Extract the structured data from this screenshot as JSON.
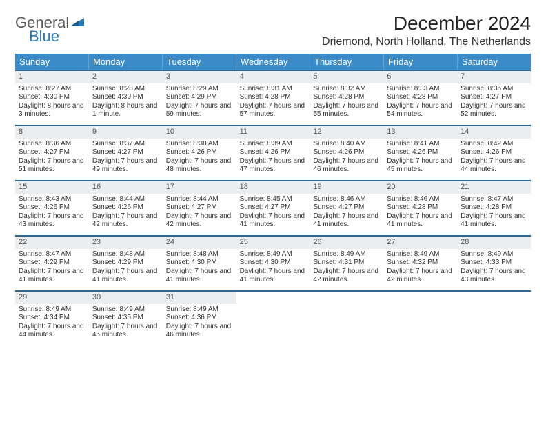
{
  "brand": {
    "word1": "General",
    "word2": "Blue"
  },
  "title": "December 2024",
  "location": "Driemond, North Holland, The Netherlands",
  "colors": {
    "header_bg": "#3b8bc9",
    "week_divider": "#2a6a9a",
    "daynum_bg": "#ecedee",
    "logo_gray": "#5a5a5a",
    "logo_blue": "#2a7ab8"
  },
  "weekdays": [
    "Sunday",
    "Monday",
    "Tuesday",
    "Wednesday",
    "Thursday",
    "Friday",
    "Saturday"
  ],
  "weeks": [
    [
      {
        "n": "1",
        "sr": "8:27 AM",
        "ss": "4:30 PM",
        "dl": "8 hours and 3 minutes."
      },
      {
        "n": "2",
        "sr": "8:28 AM",
        "ss": "4:30 PM",
        "dl": "8 hours and 1 minute."
      },
      {
        "n": "3",
        "sr": "8:29 AM",
        "ss": "4:29 PM",
        "dl": "7 hours and 59 minutes."
      },
      {
        "n": "4",
        "sr": "8:31 AM",
        "ss": "4:28 PM",
        "dl": "7 hours and 57 minutes."
      },
      {
        "n": "5",
        "sr": "8:32 AM",
        "ss": "4:28 PM",
        "dl": "7 hours and 55 minutes."
      },
      {
        "n": "6",
        "sr": "8:33 AM",
        "ss": "4:28 PM",
        "dl": "7 hours and 54 minutes."
      },
      {
        "n": "7",
        "sr": "8:35 AM",
        "ss": "4:27 PM",
        "dl": "7 hours and 52 minutes."
      }
    ],
    [
      {
        "n": "8",
        "sr": "8:36 AM",
        "ss": "4:27 PM",
        "dl": "7 hours and 51 minutes."
      },
      {
        "n": "9",
        "sr": "8:37 AM",
        "ss": "4:27 PM",
        "dl": "7 hours and 49 minutes."
      },
      {
        "n": "10",
        "sr": "8:38 AM",
        "ss": "4:26 PM",
        "dl": "7 hours and 48 minutes."
      },
      {
        "n": "11",
        "sr": "8:39 AM",
        "ss": "4:26 PM",
        "dl": "7 hours and 47 minutes."
      },
      {
        "n": "12",
        "sr": "8:40 AM",
        "ss": "4:26 PM",
        "dl": "7 hours and 46 minutes."
      },
      {
        "n": "13",
        "sr": "8:41 AM",
        "ss": "4:26 PM",
        "dl": "7 hours and 45 minutes."
      },
      {
        "n": "14",
        "sr": "8:42 AM",
        "ss": "4:26 PM",
        "dl": "7 hours and 44 minutes."
      }
    ],
    [
      {
        "n": "15",
        "sr": "8:43 AM",
        "ss": "4:26 PM",
        "dl": "7 hours and 43 minutes."
      },
      {
        "n": "16",
        "sr": "8:44 AM",
        "ss": "4:26 PM",
        "dl": "7 hours and 42 minutes."
      },
      {
        "n": "17",
        "sr": "8:44 AM",
        "ss": "4:27 PM",
        "dl": "7 hours and 42 minutes."
      },
      {
        "n": "18",
        "sr": "8:45 AM",
        "ss": "4:27 PM",
        "dl": "7 hours and 41 minutes."
      },
      {
        "n": "19",
        "sr": "8:46 AM",
        "ss": "4:27 PM",
        "dl": "7 hours and 41 minutes."
      },
      {
        "n": "20",
        "sr": "8:46 AM",
        "ss": "4:28 PM",
        "dl": "7 hours and 41 minutes."
      },
      {
        "n": "21",
        "sr": "8:47 AM",
        "ss": "4:28 PM",
        "dl": "7 hours and 41 minutes."
      }
    ],
    [
      {
        "n": "22",
        "sr": "8:47 AM",
        "ss": "4:29 PM",
        "dl": "7 hours and 41 minutes."
      },
      {
        "n": "23",
        "sr": "8:48 AM",
        "ss": "4:29 PM",
        "dl": "7 hours and 41 minutes."
      },
      {
        "n": "24",
        "sr": "8:48 AM",
        "ss": "4:30 PM",
        "dl": "7 hours and 41 minutes."
      },
      {
        "n": "25",
        "sr": "8:49 AM",
        "ss": "4:30 PM",
        "dl": "7 hours and 41 minutes."
      },
      {
        "n": "26",
        "sr": "8:49 AM",
        "ss": "4:31 PM",
        "dl": "7 hours and 42 minutes."
      },
      {
        "n": "27",
        "sr": "8:49 AM",
        "ss": "4:32 PM",
        "dl": "7 hours and 42 minutes."
      },
      {
        "n": "28",
        "sr": "8:49 AM",
        "ss": "4:33 PM",
        "dl": "7 hours and 43 minutes."
      }
    ],
    [
      {
        "n": "29",
        "sr": "8:49 AM",
        "ss": "4:34 PM",
        "dl": "7 hours and 44 minutes."
      },
      {
        "n": "30",
        "sr": "8:49 AM",
        "ss": "4:35 PM",
        "dl": "7 hours and 45 minutes."
      },
      {
        "n": "31",
        "sr": "8:49 AM",
        "ss": "4:36 PM",
        "dl": "7 hours and 46 minutes."
      },
      null,
      null,
      null,
      null
    ]
  ],
  "labels": {
    "sunrise": "Sunrise: ",
    "sunset": "Sunset: ",
    "daylight": "Daylight: "
  }
}
